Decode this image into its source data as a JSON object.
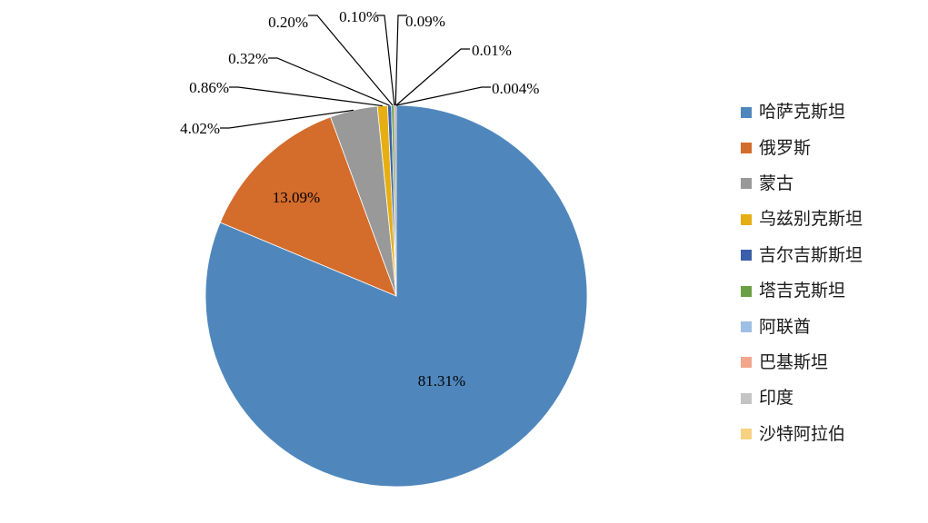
{
  "chart_data": {
    "type": "pie",
    "title": "",
    "slices": [
      {
        "name": "哈萨克斯坦",
        "value": 81.31,
        "label": "81.31%",
        "color": "#4f87bd"
      },
      {
        "name": "俄罗斯",
        "value": 13.09,
        "label": "13.09%",
        "color": "#d46c2c"
      },
      {
        "name": "蒙古",
        "value": 4.02,
        "label": "4.02%",
        "color": "#999999"
      },
      {
        "name": "乌兹别克斯坦",
        "value": 0.86,
        "label": "0.86%",
        "color": "#e6ae12"
      },
      {
        "name": "吉尔吉斯斯坦",
        "value": 0.32,
        "label": "0.32%",
        "color": "#3a5fa8"
      },
      {
        "name": "塔吉克斯坦",
        "value": 0.2,
        "label": "0.20%",
        "color": "#6aa043"
      },
      {
        "name": "阿联酋",
        "value": 0.1,
        "label": "0.10%",
        "color": "#9dbfe3"
      },
      {
        "name": "巴基斯坦",
        "value": 0.09,
        "label": "0.09%",
        "color": "#f2a68b"
      },
      {
        "name": "印度",
        "value": 0.01,
        "label": "0.01%",
        "color": "#c4c4c4"
      },
      {
        "name": "沙特阿拉伯",
        "value": 0.004,
        "label": "0.004%",
        "color": "#f7d283"
      }
    ],
    "legend_position": "right"
  }
}
